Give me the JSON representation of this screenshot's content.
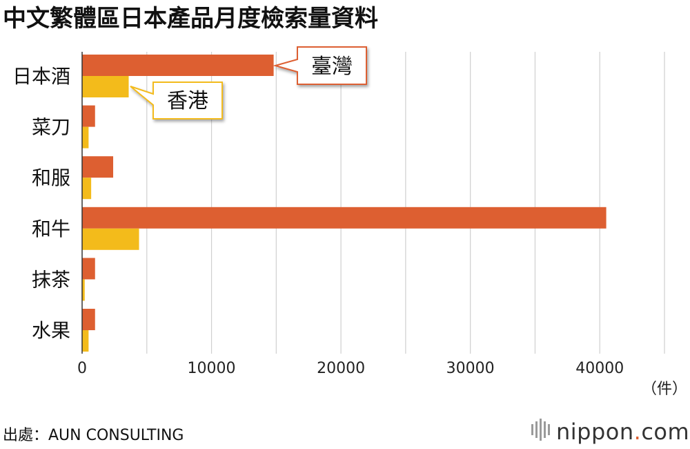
{
  "title": "中文繁體區日本產品月度檢索量資料",
  "unit_label": "（件）",
  "source": "出處：AUN CONSULTING",
  "logo": {
    "main": "nippon",
    "dot": ".",
    "suffix": "com"
  },
  "chart_data": {
    "type": "bar",
    "orientation": "horizontal",
    "categories": [
      "日本酒",
      "菜刀",
      "和服",
      "和牛",
      "抹茶",
      "水果"
    ],
    "series": [
      {
        "name": "臺灣",
        "color": "#dd5f31",
        "values": [
          14800,
          1000,
          2400,
          40500,
          1000,
          1000
        ]
      },
      {
        "name": "香港",
        "color": "#f3bb1b",
        "values": [
          3600,
          500,
          700,
          4400,
          200,
          500
        ]
      }
    ],
    "xlim": [
      0,
      45000
    ],
    "xticks": [
      0,
      10000,
      20000,
      30000,
      40000
    ],
    "grid": true,
    "legend": "callouts"
  }
}
